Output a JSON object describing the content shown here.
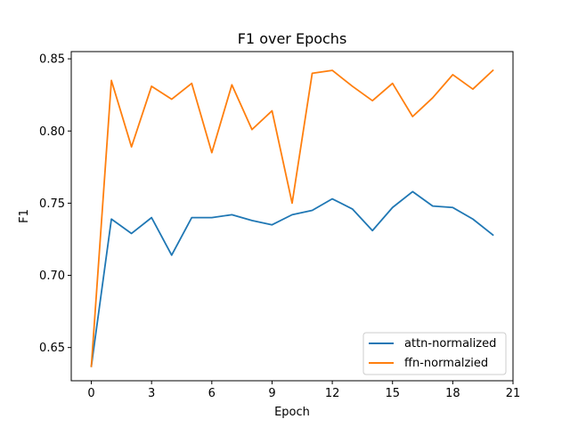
{
  "chart_data": {
    "type": "line",
    "title": "F1 over Epochs",
    "xlabel": "Epoch",
    "ylabel": "F1",
    "xlim": [
      -1,
      21
    ],
    "ylim": [
      0.627,
      0.855
    ],
    "xticks": [
      0,
      3,
      6,
      9,
      12,
      15,
      18,
      21
    ],
    "yticks": [
      0.65,
      0.7,
      0.75,
      0.8,
      0.85
    ],
    "grid": false,
    "legend_position": "lower-right",
    "x": [
      0,
      1,
      2,
      3,
      4,
      5,
      6,
      7,
      8,
      9,
      10,
      11,
      12,
      13,
      14,
      15,
      16,
      17,
      18,
      19,
      20
    ],
    "series": [
      {
        "name": "attn-normalized",
        "color": "#1f77b4",
        "values": [
          0.637,
          0.739,
          0.729,
          0.74,
          0.714,
          0.74,
          0.74,
          0.742,
          0.738,
          0.735,
          0.742,
          0.745,
          0.753,
          0.746,
          0.731,
          0.747,
          0.758,
          0.748,
          0.747,
          0.739,
          0.728
        ]
      },
      {
        "name": "ffn-normalzied",
        "color": "#ff7f0e",
        "values": [
          0.637,
          0.835,
          0.789,
          0.831,
          0.822,
          0.833,
          0.785,
          0.832,
          0.801,
          0.814,
          0.75,
          0.84,
          0.842,
          0.831,
          0.821,
          0.833,
          0.81,
          0.823,
          0.839,
          0.829,
          0.842
        ]
      }
    ]
  }
}
